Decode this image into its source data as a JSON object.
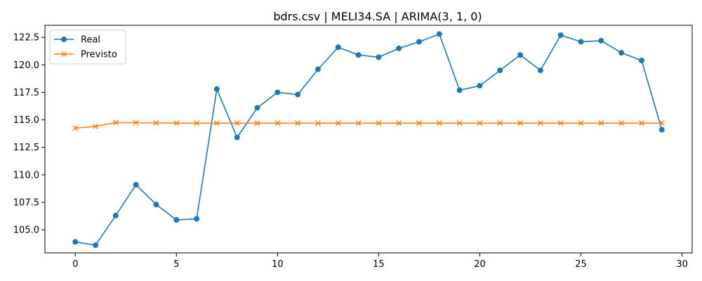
{
  "chart_data": {
    "type": "line",
    "title": "bdrs.csv | MELI34.SA | ARIMA(3, 1, 0)",
    "xlabel": "",
    "ylabel": "",
    "xlim": [
      -1.5,
      30.5
    ],
    "ylim": [
      102.9,
      123.6
    ],
    "xticks": [
      "0",
      "5",
      "10",
      "15",
      "20",
      "25",
      "30"
    ],
    "yticks": [
      "105.0",
      "107.5",
      "110.0",
      "112.5",
      "115.0",
      "117.5",
      "120.0",
      "122.5"
    ],
    "grid": false,
    "legend_position": "top-left",
    "x": [
      0,
      1,
      2,
      3,
      4,
      5,
      6,
      7,
      8,
      9,
      10,
      11,
      12,
      13,
      14,
      15,
      16,
      17,
      18,
      19,
      20,
      21,
      22,
      23,
      24,
      25,
      26,
      27,
      28,
      29
    ],
    "series": [
      {
        "name": "Real",
        "color": "#1f77b4",
        "marker": "circle",
        "values": [
          103.9,
          103.6,
          106.3,
          109.1,
          107.3,
          105.9,
          106.0,
          117.8,
          113.4,
          116.1,
          117.5,
          117.3,
          119.6,
          121.6,
          120.9,
          120.7,
          121.5,
          122.1,
          122.8,
          117.7,
          118.1,
          119.5,
          120.9,
          119.5,
          122.7,
          122.1,
          122.2,
          121.1,
          120.4,
          114.1
        ]
      },
      {
        "name": "Previsto",
        "color": "#ff7f0e",
        "marker": "x",
        "values": [
          114.25,
          114.4,
          114.75,
          114.75,
          114.72,
          114.7,
          114.7,
          114.7,
          114.7,
          114.7,
          114.7,
          114.7,
          114.7,
          114.7,
          114.7,
          114.7,
          114.7,
          114.7,
          114.7,
          114.7,
          114.7,
          114.7,
          114.7,
          114.7,
          114.7,
          114.7,
          114.7,
          114.7,
          114.7,
          114.7
        ]
      }
    ]
  }
}
